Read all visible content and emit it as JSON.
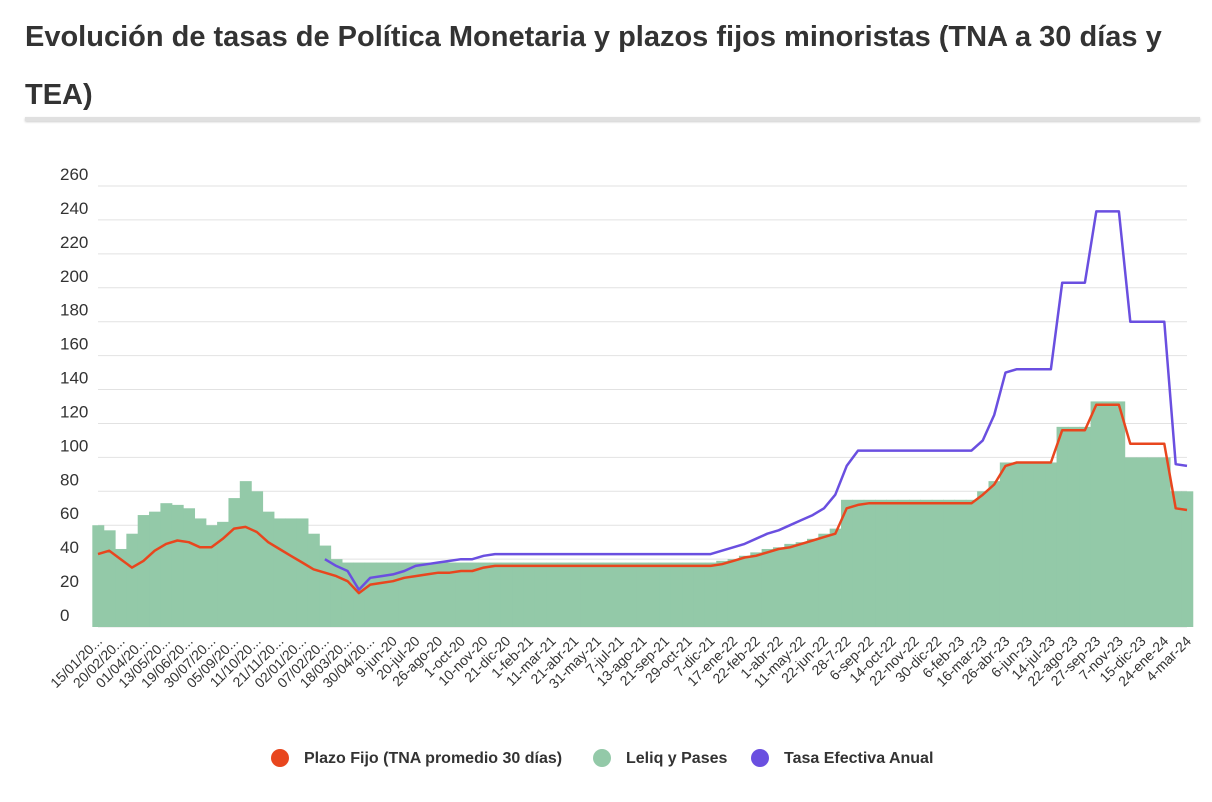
{
  "chart_data": {
    "type": "line",
    "title": "Evolución de tasas de Política Monetaria y plazos fijos minoristas (TNA a 30 días y TEA)",
    "categories": [
      "15/01/20...",
      null,
      "20/02/20...",
      null,
      "01/04/20...",
      null,
      "13/05/20...",
      null,
      "19/06/20...",
      null,
      "30/07/20...",
      null,
      "05/09/20...",
      null,
      "11/10/20...",
      null,
      "21/11/20...",
      null,
      "02/01/20...",
      null,
      "07/02/20...",
      null,
      "18/03/20...",
      null,
      "30/04/20...",
      null,
      "9-jun-20",
      null,
      "20-jul-20",
      null,
      "26-ago-20",
      null,
      "1-oct-20",
      null,
      "10-nov-20",
      null,
      "21-dic-20",
      null,
      "1-feb-21",
      null,
      "11-mar-21",
      null,
      "21-abr-21",
      null,
      "31-may-21",
      null,
      "7-jul-21",
      null,
      "13-ago-21",
      null,
      "21-sep-21",
      null,
      "29-oct-21",
      null,
      "7-dic-21",
      null,
      "17-ene-22",
      null,
      "22-feb-22",
      null,
      "1-abr-22",
      null,
      "11-may-22",
      null,
      "22-jun-22",
      null,
      "28-7-22",
      null,
      "6-sep-22",
      null,
      "14-oct-22",
      null,
      "22-nov-22",
      null,
      "30-dic-22",
      null,
      "6-feb-23",
      null,
      "16-mar-23",
      null,
      "26-abr-23",
      null,
      "6-jun-23",
      null,
      "14-jul-23",
      null,
      "22-ago-23",
      null,
      "27-sep-23",
      null,
      "7-nov-23",
      null,
      "15-dic-23",
      null,
      "24-ene-24",
      null,
      "4-mar-24"
    ],
    "series": [
      {
        "name": "Plazo Fijo (TNA promedio 30 días)",
        "color": "#e8461e",
        "type": "line",
        "values": [
          43,
          45,
          40,
          35,
          39,
          45,
          49,
          51,
          50,
          47,
          47,
          52,
          58,
          59,
          56,
          50,
          46,
          42,
          38,
          34,
          32,
          30,
          27,
          20,
          25,
          26,
          27,
          29,
          30,
          31,
          32,
          32,
          33,
          33,
          35,
          36,
          36,
          36,
          36,
          36,
          36,
          36,
          36,
          36,
          36,
          36,
          36,
          36,
          36,
          36,
          36,
          36,
          36,
          36,
          36,
          37,
          39,
          41,
          42,
          44,
          46,
          47,
          49,
          51,
          53,
          55,
          70,
          72,
          73,
          73,
          73,
          73,
          73,
          73,
          73,
          73,
          73,
          73,
          78,
          84,
          95,
          97,
          97,
          97,
          97,
          116,
          116,
          116,
          131,
          131,
          131,
          108,
          108,
          108,
          108,
          70,
          69
        ]
      },
      {
        "name": "Leliq y Pases",
        "color": "#93c9a8",
        "type": "bar",
        "values": [
          60,
          57,
          46,
          55,
          66,
          68,
          73,
          72,
          70,
          64,
          60,
          62,
          76,
          86,
          80,
          68,
          64,
          64,
          64,
          55,
          48,
          40,
          38,
          38,
          38,
          38,
          38,
          38,
          38,
          38,
          38,
          38,
          38,
          38,
          38,
          38,
          38,
          38,
          38,
          38,
          38,
          38,
          38,
          38,
          38,
          38,
          38,
          38,
          38,
          38,
          38,
          38,
          38,
          38,
          38,
          39,
          40,
          42,
          44,
          46,
          47,
          49,
          50,
          52,
          55,
          58,
          75,
          75,
          75,
          75,
          75,
          75,
          75,
          75,
          75,
          75,
          75,
          75,
          80,
          86,
          97,
          97,
          97,
          97,
          97,
          118,
          118,
          118,
          133,
          133,
          133,
          100,
          100,
          100,
          100,
          80,
          80
        ]
      },
      {
        "name": "Tasa Efectiva Anual",
        "color": "#6a4fe0",
        "type": "line",
        "values": [
          null,
          null,
          null,
          null,
          null,
          null,
          null,
          null,
          null,
          null,
          null,
          null,
          null,
          null,
          null,
          null,
          null,
          null,
          null,
          null,
          40,
          36,
          33,
          22,
          29,
          30,
          31,
          33,
          36,
          37,
          38,
          39,
          40,
          40,
          42,
          43,
          43,
          43,
          43,
          43,
          43,
          43,
          43,
          43,
          43,
          43,
          43,
          43,
          43,
          43,
          43,
          43,
          43,
          43,
          43,
          45,
          47,
          49,
          52,
          55,
          57,
          60,
          63,
          66,
          70,
          78,
          95,
          104,
          104,
          104,
          104,
          104,
          104,
          104,
          104,
          104,
          104,
          104,
          110,
          125,
          150,
          152,
          152,
          152,
          152,
          203,
          203,
          203,
          245,
          245,
          245,
          180,
          180,
          180,
          180,
          96,
          95
        ]
      }
    ],
    "ylim": [
      0,
      260
    ],
    "yticks": [
      0,
      20,
      40,
      60,
      80,
      100,
      120,
      140,
      160,
      180,
      200,
      220,
      240,
      260
    ],
    "grid": true
  }
}
